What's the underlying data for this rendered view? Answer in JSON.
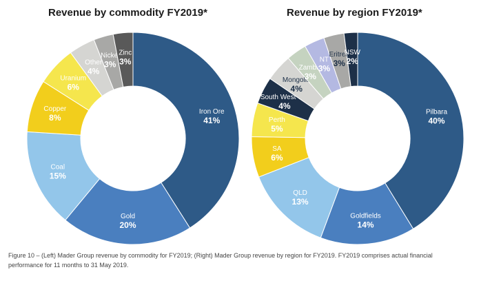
{
  "colors": {
    "navy": "#2e5a87",
    "blue": "#4a7fbf",
    "light_blue": "#93c6ea",
    "gold": "#f2ce1c",
    "yellow": "#f5e64d",
    "light_grey": "#d5d5d2",
    "sage": "#c5d3c0",
    "grey": "#a8a8a6",
    "dark_grey": "#595959",
    "lavender": "#b4b9e2",
    "dark_navy": "#1d3048"
  },
  "chart_data": [
    {
      "type": "pie",
      "title": "Revenue by commodity FY2019*",
      "slices": [
        {
          "label": "Iron Ore",
          "value": 41,
          "display": "41%",
          "color": "#2e5a87",
          "text": "#ffffff"
        },
        {
          "label": "Gold",
          "value": 20,
          "display": "20%",
          "color": "#4a7fbf",
          "text": "#ffffff"
        },
        {
          "label": "Coal",
          "value": 15,
          "display": "15%",
          "color": "#93c6ea",
          "text": "#ffffff"
        },
        {
          "label": "Copper",
          "value": 8,
          "display": "8%",
          "color": "#f2ce1c",
          "text": "#ffffff"
        },
        {
          "label": "Uranium",
          "value": 6,
          "display": "6%",
          "color": "#f5e64d",
          "text": "#ffffff"
        },
        {
          "label": "Other",
          "value": 4,
          "display": "4%",
          "color": "#d5d5d2",
          "text": "#ffffff"
        },
        {
          "label": "Nickel",
          "value": 3,
          "display": "3%",
          "color": "#a8a8a6",
          "text": "#ffffff"
        },
        {
          "label": "Zinc",
          "value": 3,
          "display": "3%",
          "color": "#595959",
          "text": "#ffffff"
        }
      ]
    },
    {
      "type": "pie",
      "title": "Revenue by region FY2019*",
      "slices": [
        {
          "label": "Pilbara",
          "value": 40,
          "display": "40%",
          "color": "#2e5a87",
          "text": "#ffffff"
        },
        {
          "label": "Goldfields",
          "value": 14,
          "display": "14%",
          "color": "#4a7fbf",
          "text": "#ffffff"
        },
        {
          "label": "QLD",
          "value": 13,
          "display": "13%",
          "color": "#93c6ea",
          "text": "#ffffff"
        },
        {
          "label": "SA",
          "value": 6,
          "display": "6%",
          "color": "#f2ce1c",
          "text": "#ffffff"
        },
        {
          "label": "Perth",
          "value": 5,
          "display": "5%",
          "color": "#f5e64d",
          "text": "#ffffff"
        },
        {
          "label": "South West WA",
          "value": 4,
          "display": "4%",
          "color": "#1d3048",
          "text": "#ffffff"
        },
        {
          "label": "Mongolia",
          "value": 4,
          "display": "4%",
          "color": "#d5d5d2",
          "text": "#1d3048"
        },
        {
          "label": "Zambia",
          "value": 3,
          "display": "3%",
          "color": "#c5d3c0",
          "text": "#ffffff"
        },
        {
          "label": "NT",
          "value": 3,
          "display": "3%",
          "color": "#b4b9e2",
          "text": "#ffffff"
        },
        {
          "label": "Eritrea",
          "value": 3,
          "display": "3%",
          "color": "#a8a8a6",
          "text": "#1d3048"
        },
        {
          "label": "NSW",
          "value": 2,
          "display": "2%",
          "color": "#1d3048",
          "text": "#ffffff"
        }
      ]
    }
  ],
  "caption": "Figure 10 – (Left) Mader Group revenue by commodity for FY2019; (Right) Mader Group revenue by region for FY2019. FY2019 comprises actual financial performance for 11 months to 31 May 2019."
}
